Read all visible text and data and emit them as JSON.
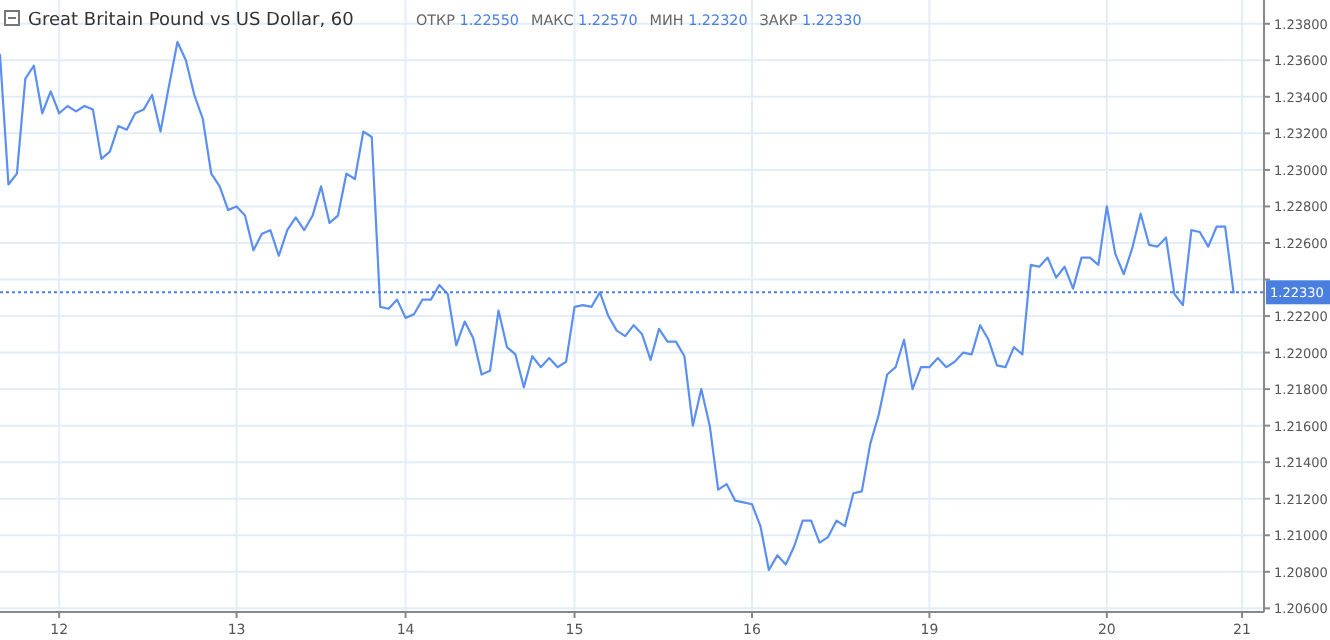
{
  "chart_data": {
    "type": "line",
    "title": "Great Britain Pound vs US Dollar, 60",
    "annotations": [
      "ОТКР 1.22550",
      "МАКС 1.22570",
      "МИН 1.22320",
      "ЗАКР 1.22330"
    ],
    "categories": [
      null,
      null,
      null,
      null,
      null,
      null,
      null,
      "12",
      null,
      null,
      null,
      null,
      null,
      null,
      null,
      null,
      null,
      null,
      null,
      null,
      null,
      null,
      null,
      null,
      null,
      null,
      null,
      null,
      "13",
      null,
      null,
      null,
      null,
      null,
      null,
      null,
      null,
      null,
      null,
      null,
      null,
      null,
      null,
      null,
      null,
      null,
      null,
      null,
      "14",
      null,
      null,
      null,
      null,
      null,
      null,
      null,
      null,
      null,
      null,
      null,
      null,
      null,
      null,
      null,
      null,
      null,
      null,
      null,
      "15",
      null,
      null,
      null,
      null,
      null,
      null,
      null,
      null,
      null,
      null,
      null,
      null,
      null,
      null,
      null,
      null,
      null,
      null,
      null,
      null,
      "16",
      null,
      null,
      null,
      null,
      null,
      null,
      null,
      null,
      null,
      null,
      null,
      null,
      null,
      null,
      null,
      null,
      null,
      null,
      null,
      null,
      "19",
      null,
      null,
      null,
      null,
      null,
      null,
      null,
      null,
      null,
      null,
      null,
      null,
      null,
      null,
      null,
      null,
      null,
      null,
      null,
      null,
      "20",
      null,
      null,
      null,
      null,
      null,
      null,
      null,
      null,
      null,
      null,
      null,
      null,
      null,
      null,
      null,
      "21"
    ],
    "series": [
      {
        "color": "#5b8ff0",
        "values": [
          1.2363,
          1.2292,
          1.2298,
          1.235,
          1.2357,
          1.2331,
          1.2343,
          1.2331,
          1.2335,
          1.2332,
          1.2335,
          1.2333,
          1.2306,
          1.231,
          1.2324,
          1.2322,
          1.2331,
          1.2333,
          1.2341,
          1.2321,
          1.2346,
          1.237,
          1.236,
          1.2341,
          1.2328,
          1.2298,
          1.2291,
          1.2278,
          1.228,
          1.2275,
          1.2256,
          1.2265,
          1.2267,
          1.2253,
          1.2267,
          1.2274,
          1.2267,
          1.2275,
          1.2291,
          1.2271,
          1.2275,
          1.2298,
          1.2295,
          1.2321,
          1.2318,
          1.2225,
          1.2224,
          1.2229,
          1.2219,
          1.2221,
          1.2229,
          1.2229,
          1.2237,
          1.2232,
          1.2204,
          1.2217,
          1.2208,
          1.2188,
          1.219,
          1.2223,
          1.2203,
          1.2199,
          1.2181,
          1.2198,
          1.2192,
          1.2197,
          1.2192,
          1.2195,
          1.2225,
          1.2226,
          1.2225,
          1.2233,
          1.222,
          1.2212,
          1.2209,
          1.2215,
          1.221,
          1.2196,
          1.2213,
          1.2206,
          1.2206,
          1.2198,
          1.216,
          1.218,
          1.216,
          1.2125,
          1.2128,
          1.2119,
          1.2118,
          1.2117,
          1.2105,
          1.2081,
          1.2089,
          1.2084,
          1.2094,
          1.2108,
          1.2108,
          1.2096,
          1.2099,
          1.2108,
          1.2105,
          1.2123,
          1.2124,
          1.215,
          1.2166,
          1.2188,
          1.2192,
          1.2207,
          1.218,
          1.2192,
          1.2192,
          1.2197,
          1.2192,
          1.2195,
          1.22,
          1.2199,
          1.2215,
          1.2207,
          1.2193,
          1.2192,
          1.2203,
          1.2199,
          1.2248,
          1.2247,
          1.2252,
          1.2241,
          1.2247,
          1.2235,
          1.2252,
          1.2252,
          1.2248,
          1.228,
          1.2254,
          1.2243,
          1.2257,
          1.2276,
          1.2259,
          1.2258,
          1.2263,
          1.2232,
          1.2226,
          1.2267,
          1.2266,
          1.2258,
          1.2269,
          1.2269,
          1.2233,
          null
        ]
      }
    ],
    "ylim": [
      1.2058,
      1.2393
    ],
    "yticks": [
      {
        "value": 1.206,
        "label": "1.20600"
      },
      {
        "value": 1.208,
        "label": "1.20800"
      },
      {
        "value": 1.21,
        "label": "1.21000"
      },
      {
        "value": 1.212,
        "label": "1.21200"
      },
      {
        "value": 1.214,
        "label": "1.21400"
      },
      {
        "value": 1.216,
        "label": "1.21600"
      },
      {
        "value": 1.218,
        "label": "1.21800"
      },
      {
        "value": 1.22,
        "label": "1.22000"
      },
      {
        "value": 1.222,
        "label": "1.22200"
      },
      {
        "value": 1.224,
        "label": null
      },
      {
        "value": 1.226,
        "label": "1.22600"
      },
      {
        "value": 1.228,
        "label": "1.22800"
      },
      {
        "value": 1.23,
        "label": "1.23000"
      },
      {
        "value": 1.232,
        "label": "1.23200"
      },
      {
        "value": 1.234,
        "label": "1.23400"
      },
      {
        "value": 1.236,
        "label": "1.23600"
      },
      {
        "value": 1.238,
        "label": "1.23800"
      }
    ],
    "ref_lines": [
      {
        "axis": "y",
        "value": 1.2233,
        "label": "1.22330",
        "color": "#4a7fe0",
        "line_style": "dotted"
      }
    ],
    "grid": true
  }
}
